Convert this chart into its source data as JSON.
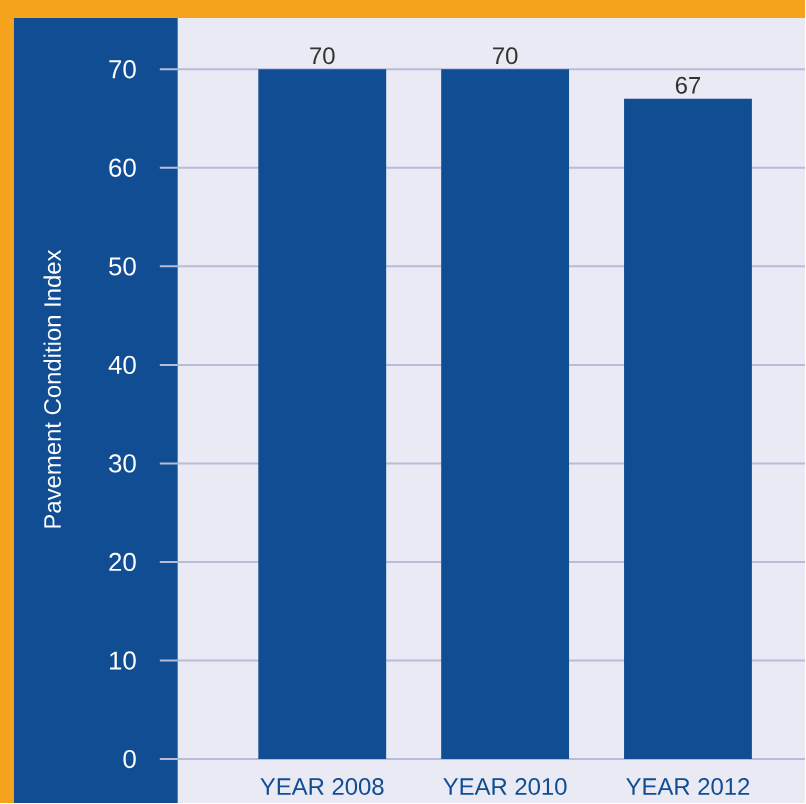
{
  "chart_data": {
    "type": "bar",
    "ylabel": "Pavement Condition Index",
    "categories": [
      "YEAR 2008",
      "YEAR 2010",
      "YEAR 2012"
    ],
    "values": [
      70,
      70,
      67
    ],
    "color": "#104d93",
    "ylim": [
      0,
      75
    ],
    "yticks": [
      0,
      10,
      20,
      30,
      40,
      50,
      60,
      70
    ],
    "grid": "y",
    "data_labels": true
  }
}
